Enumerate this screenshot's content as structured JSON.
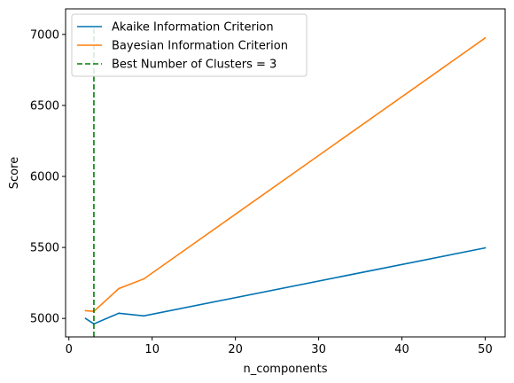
{
  "chart_data": {
    "type": "line",
    "title": "",
    "xlabel": "n_components",
    "ylabel": "Score",
    "xlim": [
      -0.4,
      52.4
    ],
    "ylim": [
      4870,
      7180
    ],
    "xticks": [
      0,
      10,
      20,
      30,
      40,
      50
    ],
    "yticks": [
      5000,
      5500,
      6000,
      6500,
      7000
    ],
    "grid": false,
    "legend_position": "top-left",
    "series": [
      {
        "name": "Akaike Information Criterion",
        "color": "#0173b2",
        "x": [
          2,
          3,
          6,
          9,
          50
        ],
        "y": [
          5000,
          4962,
          5037,
          5018,
          5497
        ]
      },
      {
        "name": "Bayesian Information Criterion",
        "color": "#ff7f0e",
        "x": [
          2,
          3,
          6,
          9,
          50
        ],
        "y": [
          5055,
          5050,
          5210,
          5278,
          6975
        ]
      }
    ],
    "annotations": [
      {
        "type": "vline",
        "name": "Best Number of Clusters = 3",
        "x": 3,
        "y_range": [
          4870,
          7060
        ],
        "color": "#008000",
        "style": "dashed"
      }
    ]
  }
}
